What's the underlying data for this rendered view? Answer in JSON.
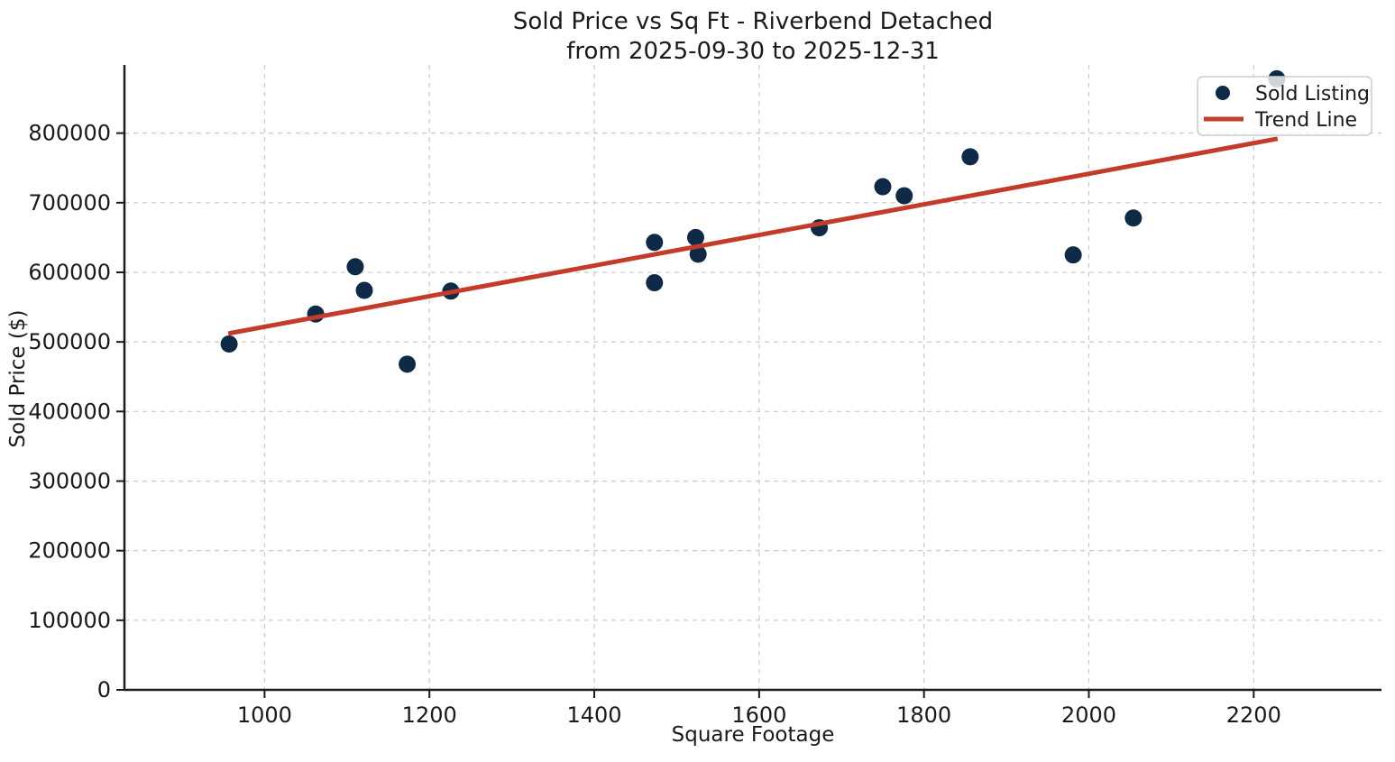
{
  "chart_data": {
    "type": "scatter",
    "title": "Sold Price vs Sq Ft - Riverbend Detached",
    "subtitle": "from 2025-09-30 to 2025-12-31",
    "xlabel": "Square Footage",
    "ylabel": "Sold Price ($)",
    "xlim": [
      830,
      2355
    ],
    "ylim": [
      0,
      898000
    ],
    "x_ticks": [
      1000,
      1200,
      1400,
      1600,
      1800,
      2000,
      2200
    ],
    "y_ticks": [
      0,
      100000,
      200000,
      300000,
      400000,
      500000,
      600000,
      700000,
      800000
    ],
    "grid": true,
    "legend_position": "upper right",
    "colors": {
      "scatter": "#0e2a47",
      "trend": "#c53b2b",
      "grid": "#c9c9c9",
      "spine": "#1a1a1a",
      "text": "#1a1a1a",
      "legend_border": "#cccccc"
    },
    "legend": [
      {
        "label": "Sold Listing",
        "type": "marker",
        "color": "#0e2a47"
      },
      {
        "label": "Trend Line",
        "type": "line",
        "color": "#c53b2b"
      }
    ],
    "series": [
      {
        "name": "Sold Listing",
        "type": "scatter",
        "color": "#0e2a47",
        "points": [
          [
            957,
            497000
          ],
          [
            1062,
            540000
          ],
          [
            1110,
            608000
          ],
          [
            1121,
            574000
          ],
          [
            1173,
            468000
          ],
          [
            1226,
            573000
          ],
          [
            1473,
            643000
          ],
          [
            1473,
            585000
          ],
          [
            1523,
            650000
          ],
          [
            1526,
            626000
          ],
          [
            1673,
            664000
          ],
          [
            1750,
            723000
          ],
          [
            1776,
            710000
          ],
          [
            1856,
            766000
          ],
          [
            1981,
            625000
          ],
          [
            2054,
            678000
          ],
          [
            2228,
            878000
          ]
        ]
      },
      {
        "name": "Trend Line",
        "type": "line",
        "color": "#c53b2b",
        "points": [
          [
            956,
            512000
          ],
          [
            2229,
            792000
          ]
        ]
      }
    ]
  }
}
